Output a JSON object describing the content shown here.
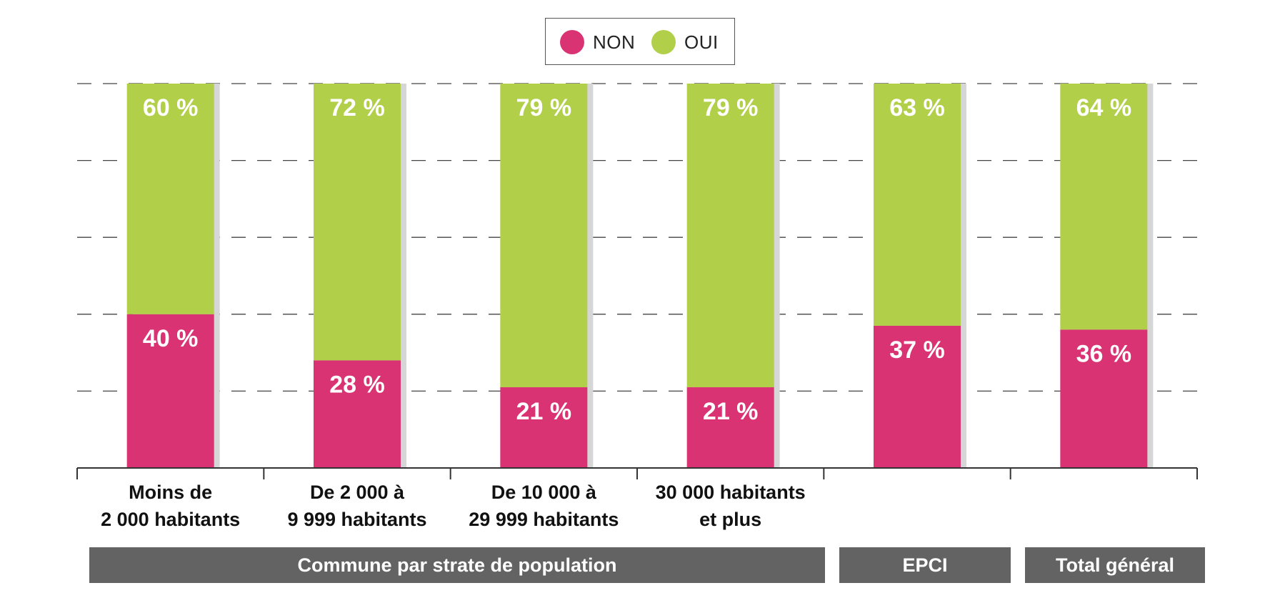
{
  "chart_data": {
    "type": "bar",
    "stacked": true,
    "ylim": [
      0,
      100
    ],
    "grid": true,
    "legend_position": "top-center",
    "categories": [
      [
        "Moins de",
        "2 000 habitants"
      ],
      [
        "De 2 000 à",
        "9 999 habitants"
      ],
      [
        "De 10 000 à",
        "29 999 habitants"
      ],
      [
        "30 000 habitants",
        "et plus"
      ],
      [],
      []
    ],
    "series": [
      {
        "name": "NON",
        "color": "#d93374",
        "values": [
          40,
          28,
          21,
          21,
          37,
          36
        ],
        "labels": [
          "40 %",
          "28 %",
          "21 %",
          "21 %",
          "37 %",
          "36 %"
        ]
      },
      {
        "name": "OUI",
        "color": "#b2cf4a",
        "values": [
          60,
          72,
          79,
          79,
          63,
          64
        ],
        "labels": [
          "60 %",
          "72 %",
          "79 %",
          "79 %",
          "63 %",
          "64 %"
        ]
      }
    ],
    "groups": [
      {
        "label": "Commune par strate de population",
        "categories": [
          0,
          1,
          2,
          3
        ]
      },
      {
        "label": "EPCI",
        "categories": [
          4
        ]
      },
      {
        "label": "Total général",
        "categories": [
          5
        ]
      }
    ]
  },
  "legend": [
    {
      "label": "NON",
      "color": "#d93374"
    },
    {
      "label": "OUI",
      "color": "#b2cf4a"
    }
  ]
}
